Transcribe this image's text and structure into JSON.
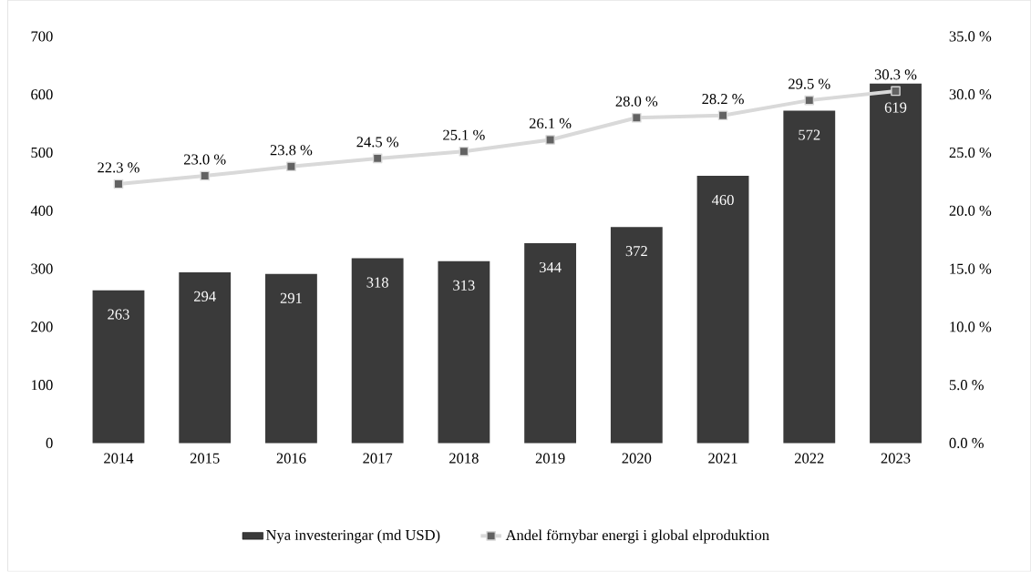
{
  "chart_data": {
    "type": "bar",
    "categories": [
      "2014",
      "2015",
      "2016",
      "2017",
      "2018",
      "2019",
      "2020",
      "2021",
      "2022",
      "2023"
    ],
    "series": [
      {
        "name": "Nya investeringar (md USD)",
        "color": "#3a3a3a",
        "values": [
          263,
          294,
          291,
          318,
          313,
          344,
          372,
          460,
          572,
          619
        ],
        "value_labels": [
          "263",
          "294",
          "291",
          "318",
          "313",
          "344",
          "372",
          "460",
          "572",
          "619"
        ]
      },
      {
        "name": "Andel förnybar energi i global elproduktion",
        "type": "line",
        "axis": "y2",
        "color": "#d9d9d9",
        "marker": "square",
        "values": [
          22.3,
          23.0,
          23.8,
          24.5,
          25.1,
          26.1,
          28.0,
          28.2,
          29.5,
          30.3
        ],
        "value_labels": [
          "22.3 %",
          "23.0 %",
          "23.8 %",
          "24.5 %",
          "25.1 %",
          "26.1 %",
          "28.0 %",
          "28.2 %",
          "29.5 %",
          "30.3 %"
        ]
      }
    ],
    "ylim": [
      0,
      700
    ],
    "yticks": [
      0,
      100,
      200,
      300,
      400,
      500,
      600,
      700
    ],
    "y2lim": [
      0,
      35
    ],
    "y2ticks": [
      {
        "value": 0,
        "label": "0.0 %"
      },
      {
        "value": 5,
        "label": "5.0 %"
      },
      {
        "value": 10,
        "label": "10.0 %"
      },
      {
        "value": 15,
        "label": "15.0 %"
      },
      {
        "value": 20,
        "label": "20.0 %"
      },
      {
        "value": 25,
        "label": "25.0 %"
      },
      {
        "value": 30,
        "label": "30.0 %"
      },
      {
        "value": 35,
        "label": "35.0 %"
      }
    ],
    "legend": "bottom"
  }
}
